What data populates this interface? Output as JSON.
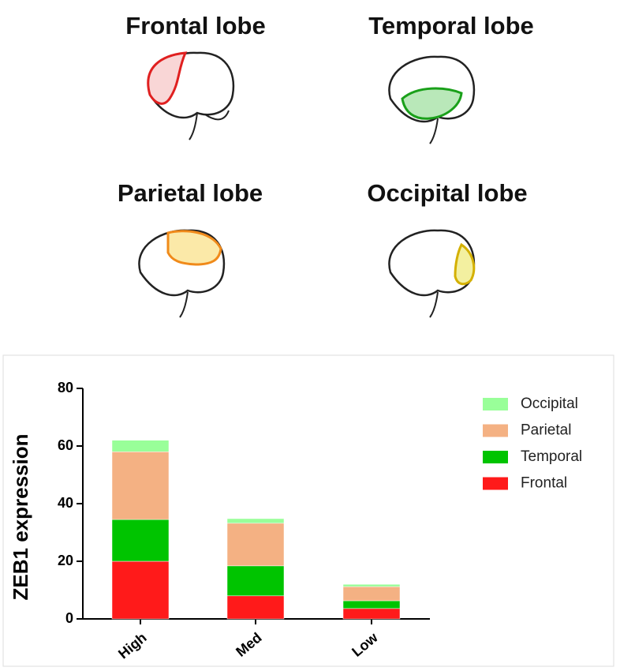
{
  "lobe_labels": [
    "Frontal lobe",
    "Temporal lobe",
    "Parietal lobe",
    "Occipital lobe"
  ],
  "chart_data": {
    "type": "stacked_bar",
    "y_label": "ZEB1 expression",
    "categories": [
      "High",
      "Med",
      "Low"
    ],
    "series": [
      {
        "name": "Frontal",
        "color": "#ff1a1a",
        "values": [
          20,
          8,
          3.6
        ]
      },
      {
        "name": "Temporal",
        "color": "#00c400",
        "values": [
          14.5,
          10.4,
          2.7
        ]
      },
      {
        "name": "Parietal",
        "color": "#f4b183",
        "values": [
          23.5,
          14.8,
          4.9
        ]
      },
      {
        "name": "Occipital",
        "color": "#99ff99",
        "values": [
          4,
          1.6,
          0.8
        ]
      }
    ],
    "ylim": [
      0,
      80
    ],
    "yticks": [
      0,
      20,
      40,
      60,
      80
    ],
    "grid": false,
    "legend": "upper right"
  }
}
